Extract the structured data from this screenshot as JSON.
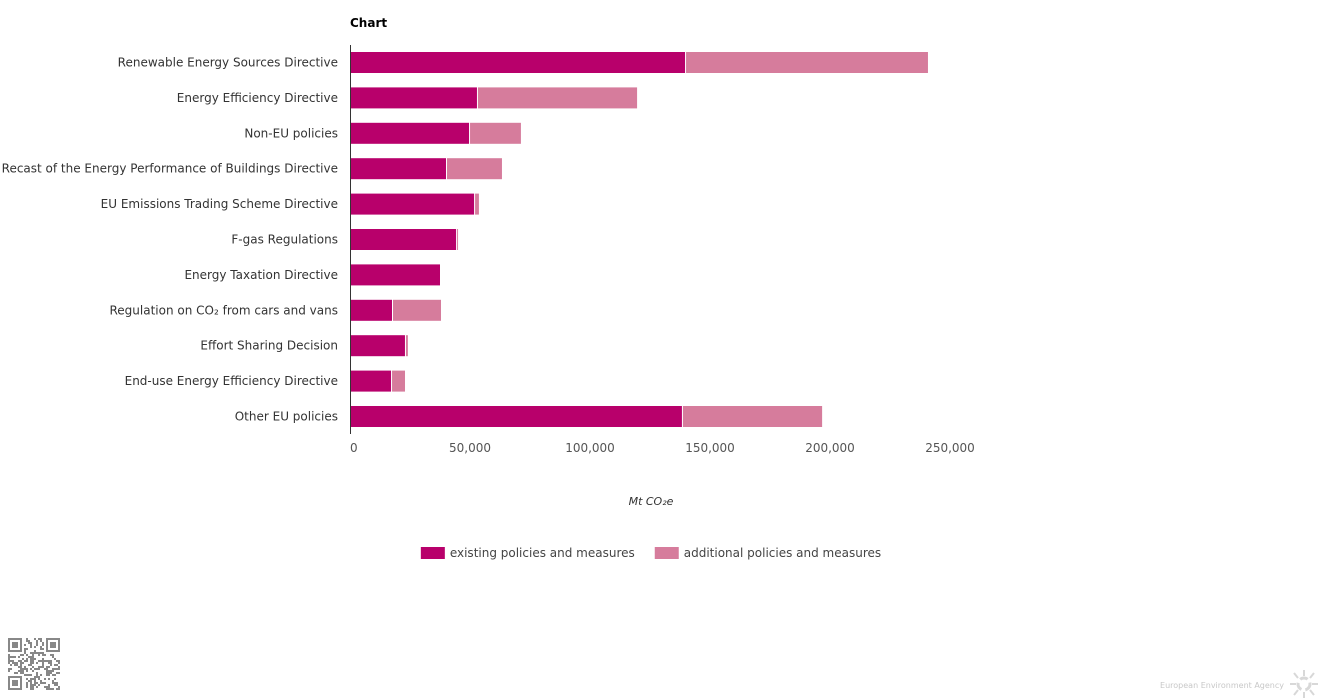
{
  "chart_data": {
    "type": "bar",
    "orientation": "horizontal",
    "stacked": true,
    "title": "Chart",
    "xlabel": "Mt CO₂e",
    "ylabel": "",
    "xlim": [
      0,
      250000
    ],
    "xticks": [
      0,
      50000,
      100000,
      150000,
      200000,
      250000
    ],
    "xtick_labels": [
      "0",
      "50,000",
      "100,000",
      "150,000",
      "200,000",
      "250,000"
    ],
    "grid": false,
    "legend_position": "bottom",
    "categories": [
      "Renewable Energy Sources Directive",
      "Energy Efficiency Directive",
      "Non-EU policies",
      "Recast of the Energy Performance of Buildings Directive",
      "EU Emissions Trading Scheme Directive",
      "F-gas Regulations",
      "Energy Taxation Directive",
      "Regulation on CO₂ from cars and vans",
      "Effort Sharing Decision",
      "End-use Energy Efficiency Directive",
      "Other EU policies"
    ],
    "series": [
      {
        "name": "existing policies and measures",
        "color": "#b8006b",
        "values": [
          139600,
          52900,
          49600,
          40000,
          51700,
          44200,
          37500,
          17500,
          22900,
          17100,
          138300
        ]
      },
      {
        "name": "additional policies and measures",
        "color": "#d67c9c",
        "values": [
          100800,
          66300,
          21200,
          22900,
          1600,
          400,
          0,
          20000,
          800,
          5400,
          58000
        ]
      }
    ]
  },
  "footer": {
    "agency": "European Environment Agency",
    "qr_code": "qr-code"
  }
}
